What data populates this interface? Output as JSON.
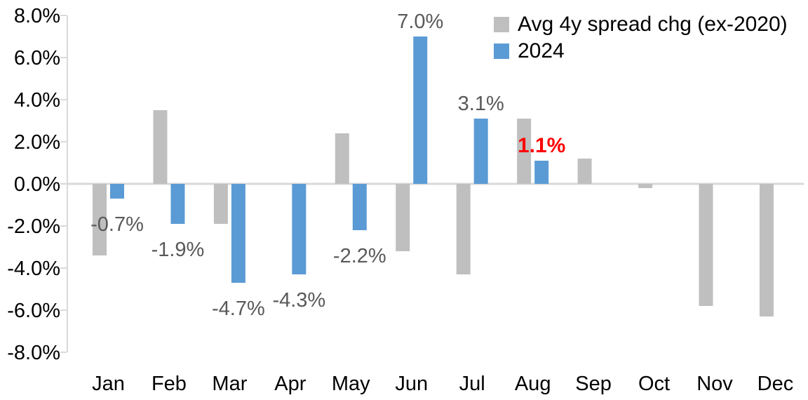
{
  "chart_data": {
    "type": "bar",
    "title": "",
    "categories": [
      "Jan",
      "Feb",
      "Mar",
      "Apr",
      "May",
      "Jun",
      "Jul",
      "Aug",
      "Sep",
      "Oct",
      "Nov",
      "Dec"
    ],
    "series": [
      {
        "name": "Avg 4y spread chg (ex-2020)",
        "color": "#BFBFBF",
        "values": [
          -3.4,
          3.5,
          -1.9,
          0.0,
          2.4,
          -3.2,
          -4.3,
          3.1,
          1.2,
          -0.2,
          -5.8,
          -6.3
        ]
      },
      {
        "name": "2024",
        "color": "#5B9BD5",
        "values": [
          -0.7,
          -1.9,
          -4.7,
          -4.3,
          -2.2,
          7.0,
          3.1,
          1.1,
          null,
          null,
          null,
          null
        ]
      }
    ],
    "data_labels": [
      {
        "category": "Jan",
        "series": "2024",
        "text": "-0.7%",
        "placement": "below",
        "color": "#595959",
        "bold": false
      },
      {
        "category": "Feb",
        "series": "2024",
        "text": "-1.9%",
        "placement": "below",
        "color": "#595959",
        "bold": false
      },
      {
        "category": "Mar",
        "series": "2024",
        "text": "-4.7%",
        "placement": "below",
        "color": "#595959",
        "bold": false
      },
      {
        "category": "Apr",
        "series": "2024",
        "text": "-4.3%",
        "placement": "below",
        "color": "#595959",
        "bold": false
      },
      {
        "category": "May",
        "series": "2024",
        "text": "-2.2%",
        "placement": "below",
        "color": "#595959",
        "bold": false
      },
      {
        "category": "Jun",
        "series": "2024",
        "text": "7.0%",
        "placement": "above",
        "color": "#595959",
        "bold": false
      },
      {
        "category": "Jul",
        "series": "2024",
        "text": "3.1%",
        "placement": "above",
        "color": "#595959",
        "bold": false
      },
      {
        "category": "Aug",
        "series": "2024",
        "text": "1.1%",
        "placement": "above",
        "color": "#FF0000",
        "bold": true
      }
    ],
    "y_axis": {
      "min": -8,
      "max": 8,
      "step": 2,
      "tick_labels": [
        "8.0%",
        "6.0%",
        "4.0%",
        "2.0%",
        "0.0%",
        "-2.0%",
        "-4.0%",
        "-6.0%",
        "-8.0%"
      ]
    },
    "x_axis": {
      "labels": [
        "Jan",
        "Feb",
        "Mar",
        "Apr",
        "May",
        "Jun",
        "Jul",
        "Aug",
        "Sep",
        "Oct",
        "Nov",
        "Dec"
      ]
    },
    "legend": {
      "position": "top-right",
      "entries": [
        {
          "label": "Avg 4y spread chg (ex-2020)",
          "color": "#BFBFBF"
        },
        {
          "label": "2024",
          "color": "#5B9BD5"
        }
      ]
    },
    "grid": "zero-line-only",
    "colors": {
      "axis": "#D9D9D9",
      "axis_text": "#000000",
      "data_label": "#595959",
      "highlight": "#FF0000"
    }
  }
}
